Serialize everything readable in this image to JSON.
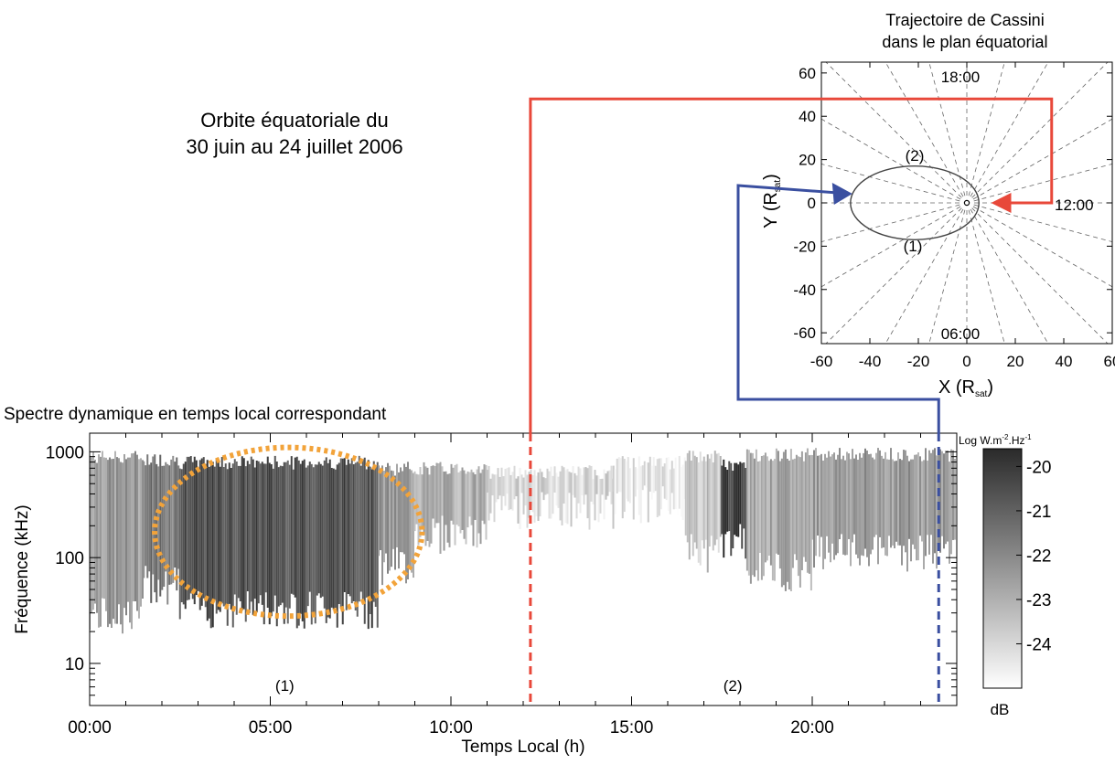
{
  "main_title": {
    "line1": "Orbite équatoriale du",
    "line2": "30 juin au 24 juillet 2006"
  },
  "orbit": {
    "title_line1": "Trajectoire de Cassini",
    "title_line2": "dans le plan équatorial",
    "xlabel_base": "X (R",
    "ylabel_base": "Y (R",
    "label_sub": "sat",
    "label_close": ")",
    "lt_labels": [
      "18:00",
      "12:00",
      "06:00"
    ],
    "segment_labels": [
      "(2)",
      "(1)"
    ]
  },
  "spectrum": {
    "title": "Spectre dynamique en temps local correspondant",
    "xlabel": "Temps Local (h)",
    "ylabel": "Fréquence (kHz)",
    "region_labels": [
      "(1)",
      "(2)"
    ],
    "colorbar_title_pre": "Log W.m",
    "colorbar_sup1": "-2",
    "colorbar_mid": ".Hz",
    "colorbar_sup2": "-1",
    "colorbar_unit": "dB"
  },
  "colors": {
    "red_marker": "#e8483a",
    "blue_marker": "#3a4fa0",
    "highlight_circle": "#f2a33a"
  },
  "chart_data": [
    {
      "type": "scatter",
      "name": "orbit",
      "x_ticks": [
        -60,
        -40,
        -20,
        0,
        20,
        40,
        60
      ],
      "y_ticks": [
        -60,
        -40,
        -20,
        0,
        20,
        40,
        60
      ],
      "xlim": [
        -60,
        60
      ],
      "ylim": [
        -65,
        65
      ],
      "orbit_ellipse": {
        "periapsis_x": 5,
        "apoapsis_x": -48,
        "semi_minor": 17
      },
      "red_marker": {
        "x": 35,
        "y": 0
      },
      "blue_marker": {
        "x": -48,
        "y": 0
      },
      "grid": "radial-dashed"
    },
    {
      "type": "heatmap",
      "name": "dynamic spectrum",
      "x_ticks": [
        "00:00",
        "05:00",
        "10:00",
        "15:00",
        "20:00"
      ],
      "x_tick_values": [
        0,
        5,
        10,
        15,
        20
      ],
      "xlim": [
        0,
        24
      ],
      "y_ticks": [
        10,
        100,
        1000
      ],
      "ylim": [
        4,
        1500
      ],
      "yscale": "log",
      "red_marker_time": 12.2,
      "blue_marker_time": 23.5,
      "highlight_ellipse": {
        "x_center": 5.5,
        "y_center": 220,
        "x_half_width": 3.7,
        "y_range": [
          28,
          1100
        ]
      },
      "bands": [
        {
          "t0": 0.0,
          "t1": 1.5,
          "fmin": 30,
          "fmax": 900,
          "level": -22.5
        },
        {
          "t0": 1.5,
          "t1": 2.5,
          "fmin": 60,
          "fmax": 850,
          "level": -21.5
        },
        {
          "t0": 2.5,
          "t1": 8.0,
          "fmin": 35,
          "fmax": 800,
          "level": -20.5
        },
        {
          "t0": 8.0,
          "t1": 9.0,
          "fmin": 90,
          "fmax": 700,
          "level": -22.5
        },
        {
          "t0": 9.0,
          "t1": 11.0,
          "fmin": 180,
          "fmax": 700,
          "level": -23.0
        },
        {
          "t0": 11.0,
          "t1": 14.5,
          "fmin": 300,
          "fmax": 650,
          "level": -24.0
        },
        {
          "t0": 14.5,
          "t1": 16.5,
          "fmin": 350,
          "fmax": 800,
          "level": -24.3
        },
        {
          "t0": 16.5,
          "t1": 17.5,
          "fmin": 120,
          "fmax": 900,
          "level": -23.5
        },
        {
          "t0": 17.5,
          "t1": 18.2,
          "fmin": 150,
          "fmax": 750,
          "level": -20.0
        },
        {
          "t0": 18.2,
          "t1": 20.0,
          "fmin": 80,
          "fmax": 950,
          "level": -22.8
        },
        {
          "t0": 20.0,
          "t1": 24.0,
          "fmin": 120,
          "fmax": 950,
          "level": -22.5
        }
      ],
      "colorbar": {
        "ticks": [
          -20,
          -21,
          -22,
          -23,
          -24
        ],
        "range": [
          -25,
          -19.6
        ]
      }
    }
  ]
}
